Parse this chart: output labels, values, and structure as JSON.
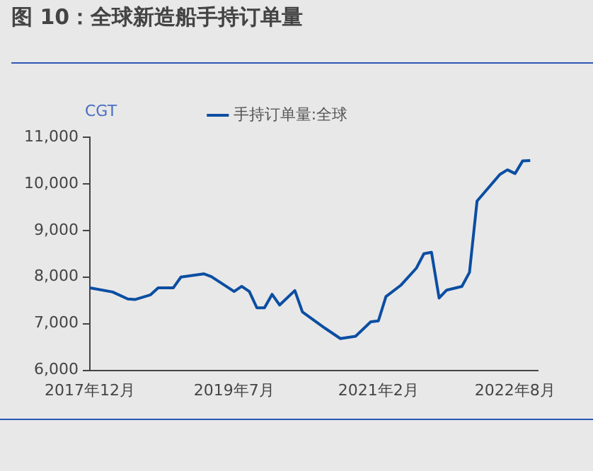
{
  "chart_data": {
    "type": "line",
    "title": "图 10：全球新造船手持订单量",
    "ylabel": "CGT",
    "x": [
      "2017-12",
      "2018-03",
      "2018-05",
      "2018-06",
      "2018-08",
      "2018-09",
      "2018-11",
      "2018-12",
      "2019-03",
      "2019-04",
      "2019-07",
      "2019-08",
      "2019-09",
      "2019-10",
      "2019-11",
      "2019-12",
      "2020-01",
      "2020-03",
      "2020-04",
      "2020-07",
      "2020-09",
      "2020-11",
      "2021-01",
      "2021-02",
      "2021-03",
      "2021-05",
      "2021-07",
      "2021-08",
      "2021-09",
      "2021-10",
      "2021-11",
      "2022-01",
      "2022-02",
      "2022-03",
      "2022-04",
      "2022-06",
      "2022-07",
      "2022-08",
      "2022-09",
      "2022-10"
    ],
    "series": [
      {
        "name": "手持订单量:全球",
        "color": "#0b4ea2",
        "values": [
          7770,
          7680,
          7530,
          7520,
          7620,
          7770,
          7770,
          8000,
          8070,
          8010,
          7690,
          7800,
          7690,
          7340,
          7340,
          7630,
          7400,
          7710,
          7250,
          6900,
          6680,
          6730,
          7040,
          7060,
          7580,
          7830,
          8190,
          8500,
          8530,
          7550,
          7720,
          7800,
          8100,
          9630,
          9820,
          10200,
          10300,
          10220,
          10490,
          10500
        ]
      }
    ],
    "xlim": [
      "2017-12",
      "2022-11"
    ],
    "xticks": [
      {
        "value": "2017-12",
        "label": "2017年12月"
      },
      {
        "value": "2019-07",
        "label": "2019年7月"
      },
      {
        "value": "2021-02",
        "label": "2021年2月"
      },
      {
        "value": "2022-08",
        "label": "2022年8月"
      }
    ],
    "ylim": [
      6000,
      11000
    ],
    "yticks": [
      {
        "value": 6000,
        "label": "6,000"
      },
      {
        "value": 7000,
        "label": "7,000"
      },
      {
        "value": 8000,
        "label": "8,000"
      },
      {
        "value": 9000,
        "label": "9,000"
      },
      {
        "value": 10000,
        "label": "10,000"
      },
      {
        "value": 11000,
        "label": "11,000"
      }
    ],
    "grid": false,
    "legend": "top",
    "marker": "none",
    "line_style": "solid"
  }
}
